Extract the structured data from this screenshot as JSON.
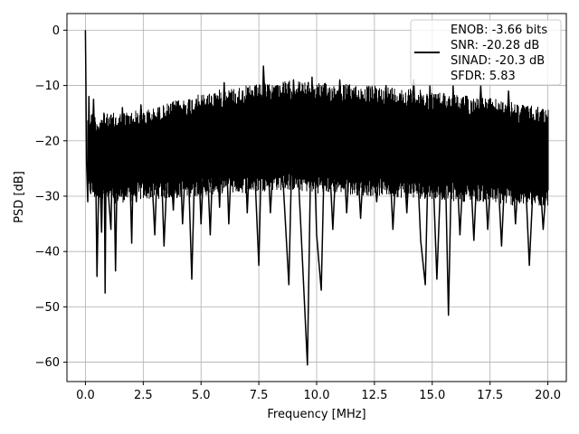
{
  "chart_data": {
    "type": "line",
    "xlabel": "Frequency [MHz]",
    "ylabel": "PSD [dB]",
    "xlim": [
      -0.8,
      20.8
    ],
    "ylim": [
      -63.5,
      3
    ],
    "x_ticks": [
      0.0,
      2.5,
      5.0,
      7.5,
      10.0,
      12.5,
      15.0,
      17.5,
      20.0
    ],
    "x_tick_labels": [
      "0.0",
      "2.5",
      "5.0",
      "7.5",
      "10.0",
      "12.5",
      "15.0",
      "17.5",
      "20.0"
    ],
    "y_ticks": [
      0,
      -10,
      -20,
      -30,
      -40,
      -50,
      -60
    ],
    "y_tick_labels": [
      "0",
      "−10",
      "−20",
      "−30",
      "−40",
      "−50",
      "−60"
    ],
    "grid": true,
    "legend_location": "upper right",
    "series": [
      {
        "color": "#000000",
        "points": [
          [
            0.0,
            0.0
          ],
          [
            0.02,
            -10.0
          ],
          [
            0.05,
            -24.0
          ],
          [
            0.1,
            -31.0
          ],
          [
            0.15,
            -12.0
          ],
          [
            0.2,
            -29.0
          ],
          [
            0.3,
            -20.0
          ],
          [
            0.35,
            -12.5
          ],
          [
            0.45,
            -27.0
          ],
          [
            0.5,
            -44.5
          ],
          [
            0.6,
            -22.0
          ],
          [
            0.7,
            -36.5
          ],
          [
            0.8,
            -15.0
          ],
          [
            0.85,
            -47.5
          ],
          [
            0.9,
            -21.0
          ],
          [
            1.0,
            -30.0
          ],
          [
            1.1,
            -36.0
          ],
          [
            1.2,
            -16.0
          ],
          [
            1.3,
            -43.5
          ],
          [
            1.4,
            -18.0
          ],
          [
            1.5,
            -30.0
          ],
          [
            1.6,
            -14.0
          ],
          [
            1.75,
            -30.0
          ],
          [
            1.9,
            -22.0
          ],
          [
            2.0,
            -38.5
          ],
          [
            2.1,
            -17.0
          ],
          [
            2.2,
            -31.0
          ],
          [
            2.4,
            -13.5
          ],
          [
            2.6,
            -29.0
          ],
          [
            2.8,
            -20.0
          ],
          [
            3.0,
            -37.0
          ],
          [
            3.2,
            -14.0
          ],
          [
            3.4,
            -39.0
          ],
          [
            3.6,
            -19.0
          ],
          [
            3.8,
            -32.5
          ],
          [
            4.0,
            -13.0
          ],
          [
            4.2,
            -35.0
          ],
          [
            4.4,
            -18.0
          ],
          [
            4.6,
            -45.0
          ],
          [
            4.8,
            -12.5
          ],
          [
            5.0,
            -35.0
          ],
          [
            5.2,
            -17.0
          ],
          [
            5.4,
            -37.0
          ],
          [
            5.6,
            -11.5
          ],
          [
            5.8,
            -32.0
          ],
          [
            6.0,
            -9.5
          ],
          [
            6.2,
            -35.0
          ],
          [
            6.4,
            -15.0
          ],
          [
            6.6,
            -29.0
          ],
          [
            6.8,
            -11.0
          ],
          [
            7.0,
            -33.0
          ],
          [
            7.2,
            -13.0
          ],
          [
            7.5,
            -42.5
          ],
          [
            7.7,
            -6.5
          ],
          [
            8.0,
            -33.0
          ],
          [
            8.3,
            -10.0
          ],
          [
            8.6,
            -31.0
          ],
          [
            8.8,
            -46.0
          ],
          [
            9.0,
            -9.0
          ],
          [
            9.3,
            -34.0
          ],
          [
            9.6,
            -60.5
          ],
          [
            9.8,
            -8.5
          ],
          [
            10.0,
            -37.0
          ],
          [
            10.2,
            -47.0
          ],
          [
            10.4,
            -10.0
          ],
          [
            10.7,
            -36.0
          ],
          [
            11.0,
            -9.0
          ],
          [
            11.3,
            -33.0
          ],
          [
            11.6,
            -11.0
          ],
          [
            11.9,
            -34.0
          ],
          [
            12.2,
            -10.5
          ],
          [
            12.6,
            -31.0
          ],
          [
            13.0,
            -10.0
          ],
          [
            13.3,
            -36.0
          ],
          [
            13.6,
            -11.5
          ],
          [
            13.9,
            -33.0
          ],
          [
            14.2,
            -9.0
          ],
          [
            14.5,
            -38.0
          ],
          [
            14.7,
            -46.0
          ],
          [
            14.9,
            -10.0
          ],
          [
            15.2,
            -45.0
          ],
          [
            15.5,
            -11.5
          ],
          [
            15.7,
            -51.5
          ],
          [
            15.9,
            -10.0
          ],
          [
            16.2,
            -37.0
          ],
          [
            16.5,
            -12.0
          ],
          [
            16.8,
            -38.0
          ],
          [
            17.1,
            -10.0
          ],
          [
            17.4,
            -36.0
          ],
          [
            17.7,
            -14.0
          ],
          [
            18.0,
            -39.0
          ],
          [
            18.3,
            -11.0
          ],
          [
            18.6,
            -35.0
          ],
          [
            18.9,
            -14.0
          ],
          [
            19.2,
            -42.5
          ],
          [
            19.5,
            -15.5
          ],
          [
            19.8,
            -36.0
          ],
          [
            20.0,
            -24.0
          ]
        ],
        "band": {
          "x_start": 0.12,
          "x_end": 20.0,
          "upper": [
            [
              0.1,
              -14.0
            ],
            [
              0.5,
              -15.5
            ],
            [
              1.0,
              -15.0
            ],
            [
              2.0,
              -14.5
            ],
            [
              3.0,
              -14.0
            ],
            [
              4.0,
              -12.5
            ],
            [
              5.0,
              -11.5
            ],
            [
              6.0,
              -10.5
            ],
            [
              7.0,
              -10.0
            ],
            [
              8.0,
              -9.5
            ],
            [
              9.0,
              -9.0
            ],
            [
              10.0,
              -9.5
            ],
            [
              11.0,
              -9.5
            ],
            [
              12.0,
              -10.0
            ],
            [
              13.0,
              -10.0
            ],
            [
              14.0,
              -10.5
            ],
            [
              15.0,
              -11.0
            ],
            [
              16.0,
              -11.5
            ],
            [
              17.0,
              -12.0
            ],
            [
              18.0,
              -12.5
            ],
            [
              19.0,
              -13.5
            ],
            [
              20.0,
              -14.0
            ]
          ],
          "lower": [
            [
              0.1,
              -30.0
            ],
            [
              0.5,
              -31.0
            ],
            [
              1.0,
              -31.5
            ],
            [
              2.0,
              -31.0
            ],
            [
              3.0,
              -30.5
            ],
            [
              4.0,
              -30.5
            ],
            [
              5.0,
              -30.0
            ],
            [
              6.0,
              -29.5
            ],
            [
              7.0,
              -29.5
            ],
            [
              8.0,
              -29.0
            ],
            [
              9.0,
              -29.0
            ],
            [
              10.0,
              -29.5
            ],
            [
              11.0,
              -29.5
            ],
            [
              12.0,
              -30.0
            ],
            [
              13.0,
              -30.0
            ],
            [
              14.0,
              -30.5
            ],
            [
              15.0,
              -30.5
            ],
            [
              16.0,
              -31.0
            ],
            [
              17.0,
              -31.0
            ],
            [
              18.0,
              -31.5
            ],
            [
              19.0,
              -32.0
            ],
            [
              20.0,
              -32.0
            ]
          ]
        }
      }
    ],
    "legend": {
      "lines": [
        "ENOB: -3.66 bits",
        "SNR: -20.28 dB",
        "SINAD: -20.3 dB",
        "SFDR: 5.83"
      ]
    }
  }
}
